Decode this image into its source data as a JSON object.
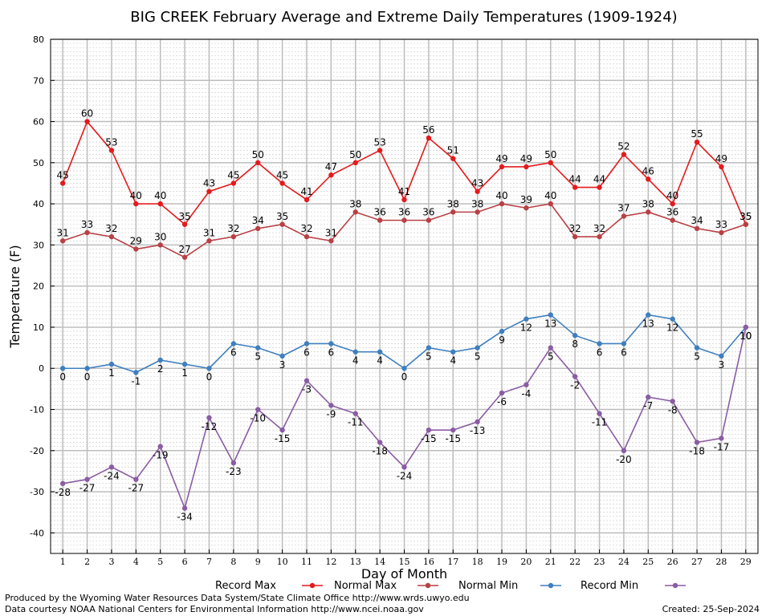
{
  "chart_data": {
    "type": "line",
    "title": "BIG CREEK February Average and Extreme Daily Temperatures (1909-1924)",
    "xlabel": "Day of Month",
    "ylabel": "Temperature (F)",
    "x": [
      1,
      2,
      3,
      4,
      5,
      6,
      7,
      8,
      9,
      10,
      11,
      12,
      13,
      14,
      15,
      16,
      17,
      18,
      19,
      20,
      21,
      22,
      23,
      24,
      25,
      26,
      27,
      28,
      29
    ],
    "ylim": [
      -45,
      80
    ],
    "yticks": [
      -40,
      -30,
      -20,
      -10,
      0,
      10,
      20,
      30,
      40,
      50,
      60,
      70,
      80
    ],
    "grid": true,
    "legend_position": "bottom",
    "series": [
      {
        "name": "Record Max",
        "color": "#e41a1c",
        "label_pos": "above",
        "values": [
          45,
          60,
          53,
          40,
          40,
          35,
          43,
          45,
          50,
          45,
          41,
          47,
          50,
          53,
          41,
          56,
          51,
          43,
          49,
          49,
          50,
          44,
          44,
          52,
          46,
          40,
          55,
          49,
          35
        ]
      },
      {
        "name": "Normal Max",
        "color": "#b84044",
        "label_pos": "above",
        "values": [
          31,
          33,
          32,
          29,
          30,
          27,
          31,
          32,
          34,
          35,
          32,
          31,
          38,
          36,
          36,
          36,
          38,
          38,
          40,
          39,
          40,
          32,
          32,
          37,
          38,
          36,
          34,
          33,
          35
        ]
      },
      {
        "name": "Normal Min",
        "color": "#3f7fbf",
        "label_pos": "below",
        "values": [
          0,
          0,
          1,
          -1,
          2,
          1,
          0,
          6,
          5,
          3,
          6,
          6,
          4,
          4,
          0,
          5,
          4,
          5,
          9,
          12,
          13,
          8,
          6,
          6,
          13,
          12,
          5,
          3,
          10
        ]
      },
      {
        "name": "Record Min",
        "color": "#8a5ca3",
        "label_pos": "below",
        "values": [
          -28,
          -27,
          -24,
          -27,
          -19,
          -34,
          -12,
          -23,
          -10,
          -15,
          -3,
          -9,
          -11,
          -18,
          -24,
          -15,
          -15,
          -13,
          -6,
          -4,
          5,
          -2,
          -11,
          -20,
          -7,
          -8,
          -18,
          -17,
          10
        ]
      }
    ]
  },
  "footer": {
    "produced_by": "Produced by the Wyoming Water Resources Data System/State Climate Office http://www.wrds.uwyo.edu",
    "courtesy": "Data courtesy NOAA National Centers for Environmental Information http://www.ncei.noaa.gov",
    "created": "Created:  25-Sep-2024"
  }
}
